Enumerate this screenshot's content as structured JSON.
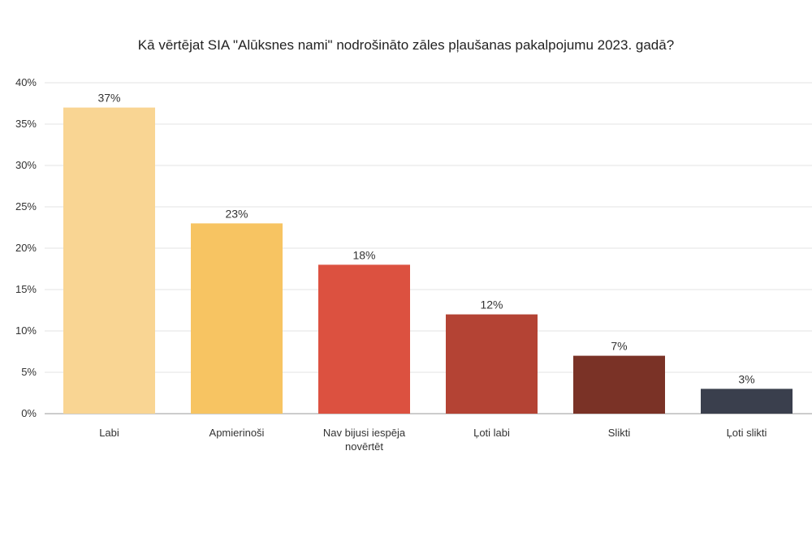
{
  "chart_data": {
    "type": "bar",
    "title": "Kā vērtējat SIA \"Alūksnes nami\" nodrošināto zāles pļaušanas pakalpojumu 2023. gadā?",
    "categories": [
      [
        "Labi"
      ],
      [
        "Apmierinoši"
      ],
      [
        "Nav bijusi iespēja",
        "novērtēt"
      ],
      [
        "Ļoti labi"
      ],
      [
        "Slikti"
      ],
      [
        "Ļoti slikti"
      ]
    ],
    "values": [
      37,
      23,
      18,
      12,
      7,
      3
    ],
    "value_labels": [
      "37%",
      "23%",
      "18%",
      "12%",
      "7%",
      "3%"
    ],
    "colors": [
      "#f9d593",
      "#f7c462",
      "#dc5140",
      "#b44334",
      "#7a3226",
      "#3a3f4d"
    ],
    "yticks": [
      0,
      5,
      10,
      15,
      20,
      25,
      30,
      35,
      40
    ],
    "ytick_labels": [
      "0%",
      "5%",
      "10%",
      "15%",
      "20%",
      "25%",
      "30%",
      "35%",
      "40%"
    ],
    "ylim": [
      0,
      40
    ],
    "grid": true,
    "xlabel": "",
    "ylabel": ""
  }
}
